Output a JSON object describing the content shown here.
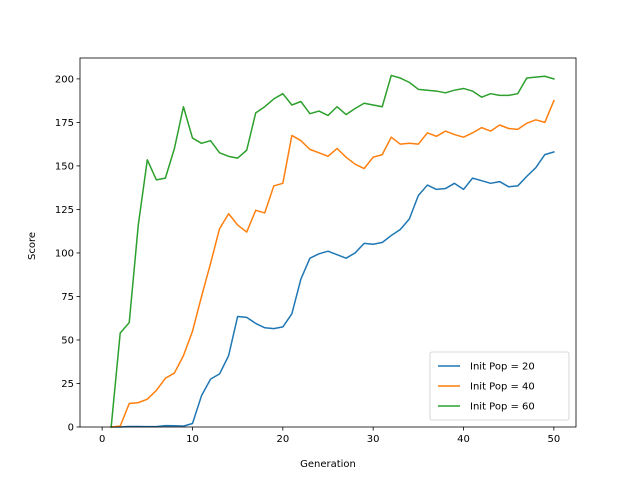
{
  "chart_data": {
    "type": "line",
    "title": "",
    "xlabel": "Generation",
    "ylabel": "Score",
    "xlim": [
      -2.45,
      52.45
    ],
    "ylim": [
      0,
      212
    ],
    "xticks": [
      0,
      10,
      20,
      30,
      40,
      50
    ],
    "yticks": [
      0,
      25,
      50,
      75,
      100,
      125,
      150,
      175,
      200
    ],
    "grid": false,
    "legend_position": "bottom-right",
    "x": [
      1,
      2,
      3,
      4,
      5,
      6,
      7,
      8,
      9,
      10,
      11,
      12,
      13,
      14,
      15,
      16,
      17,
      18,
      19,
      20,
      21,
      22,
      23,
      24,
      25,
      26,
      27,
      28,
      29,
      30,
      31,
      32,
      33,
      34,
      35,
      36,
      37,
      38,
      39,
      40,
      41,
      42,
      43,
      44,
      45,
      46,
      47,
      48,
      49,
      50
    ],
    "series": [
      {
        "name": "Init Pop = 20",
        "color": "#1f77b4",
        "values": [
          0,
          0,
          0.3,
          0.3,
          0.2,
          0.2,
          0.8,
          0.7,
          0.5,
          2,
          18,
          27.5,
          30.5,
          41,
          63.5,
          63,
          59.5,
          57,
          56.5,
          57.5,
          65,
          85,
          97,
          99.5,
          101,
          99,
          97,
          100,
          105.5,
          105,
          106,
          110,
          113.5,
          119.5,
          133,
          139,
          136.5,
          137,
          140,
          136.5,
          143,
          141.5,
          140,
          141,
          138,
          138.5,
          144,
          149,
          156.5,
          158
        ]
      },
      {
        "name": "Init Pop = 40",
        "color": "#ff7f0e",
        "values": [
          0,
          0.5,
          13.5,
          14,
          16,
          21,
          28,
          31,
          41,
          55,
          75,
          94,
          114,
          122.5,
          116,
          112,
          124.5,
          123,
          138.5,
          140,
          167.5,
          164.5,
          159.5,
          157.5,
          155.5,
          160,
          155,
          151,
          148.5,
          155,
          156.5,
          166.5,
          162.5,
          163,
          162.5,
          169,
          167,
          170,
          168,
          166.5,
          169,
          172,
          170,
          173.5,
          171.5,
          171,
          174.5,
          176.5,
          175,
          187.5
        ]
      },
      {
        "name": "Init Pop = 60",
        "color": "#2ca02c",
        "values": [
          0,
          54,
          60,
          116,
          153.5,
          142,
          143,
          160,
          184,
          166,
          163,
          164.5,
          157.5,
          155.5,
          154.5,
          159,
          180.5,
          184,
          188.5,
          191.5,
          185,
          187,
          180,
          181.5,
          179,
          184,
          179.5,
          183,
          186,
          185,
          184,
          202,
          200.5,
          198,
          194,
          193.5,
          193,
          192,
          193.5,
          194.5,
          193,
          189.5,
          191.5,
          190.5,
          190.5,
          191.5,
          200.5,
          201,
          201.5,
          200
        ]
      }
    ],
    "legend": [
      "Init Pop = 20",
      "Init Pop = 40",
      "Init Pop = 60"
    ]
  }
}
